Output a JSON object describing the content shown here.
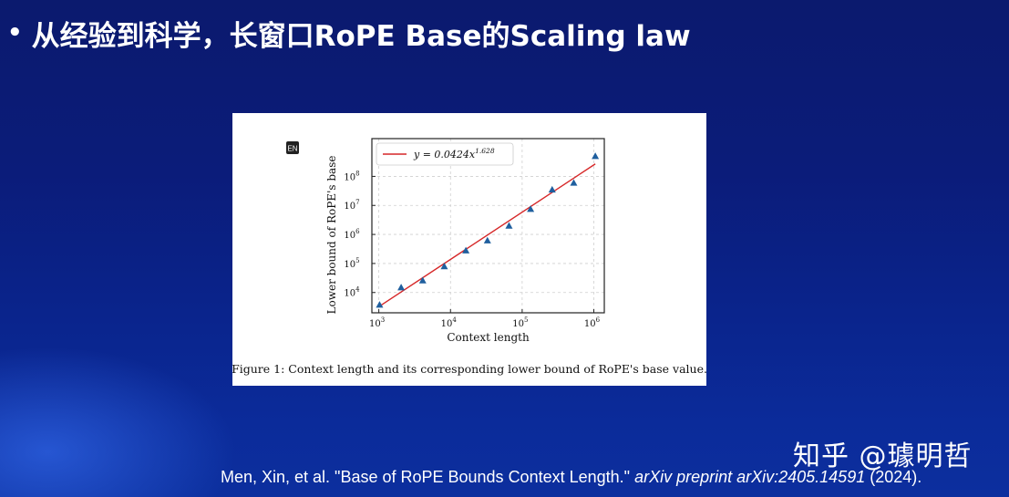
{
  "slide": {
    "bullet": "•",
    "title": "从经验到科学，长窗口RoPE Base的Scaling law"
  },
  "figure": {
    "badge": "EN",
    "caption": "Figure 1: Context length and its corresponding lower bound of RoPE's base value."
  },
  "watermark": "知乎 @璩明哲",
  "citation": {
    "authors": "Men, Xin, et al. \"Base of RoPE Bounds Context Length.\"",
    "journal": "arXiv preprint arXiv:2405.14591",
    "year": "(2024)."
  },
  "chart_data": {
    "type": "scatter",
    "xlabel": "Context length",
    "ylabel": "Lower bound of RoPE's base",
    "xscale": "log",
    "yscale": "log",
    "xlim": [
      800,
      1400000
    ],
    "ylim": [
      2000,
      2000000000
    ],
    "x_ticks": [
      {
        "value": 1000,
        "base": "10",
        "exp": "3"
      },
      {
        "value": 10000,
        "base": "10",
        "exp": "4"
      },
      {
        "value": 100000,
        "base": "10",
        "exp": "5"
      },
      {
        "value": 1000000,
        "base": "10",
        "exp": "6"
      }
    ],
    "y_ticks": [
      {
        "value": 10000,
        "base": "10",
        "exp": "4"
      },
      {
        "value": 100000,
        "base": "10",
        "exp": "5"
      },
      {
        "value": 1000000,
        "base": "10",
        "exp": "6"
      },
      {
        "value": 10000000,
        "base": "10",
        "exp": "7"
      },
      {
        "value": 100000000,
        "base": "10",
        "exp": "8"
      }
    ],
    "grid": true,
    "legend_position": "top-left",
    "fit": {
      "label_prefix": "y = 0.0424x",
      "label_exp": "1.628",
      "coef": 0.0424,
      "exponent": 1.628,
      "color": "#d62728"
    },
    "series": [
      {
        "marker": "triangle",
        "color": "#1f5f9e",
        "x": [
          1024,
          2048,
          4096,
          8192,
          16384,
          32768,
          65536,
          131072,
          262144,
          524288,
          1048576
        ],
        "y": [
          3800,
          15000,
          26000,
          80000,
          280000,
          620000,
          2000000,
          7500000,
          35000000,
          60000000,
          500000000
        ]
      }
    ]
  }
}
